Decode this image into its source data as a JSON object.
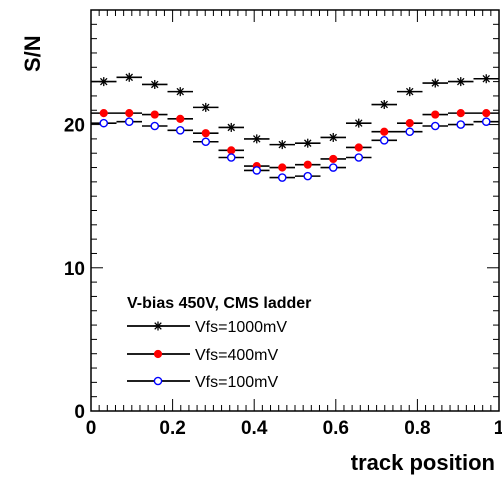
{
  "chart_data": {
    "type": "scatter",
    "xlabel": "track position",
    "ylabel": "S/N",
    "xlim": [
      0,
      1
    ],
    "ylim": [
      0,
      28
    ],
    "x_ticks": [
      "0",
      "0.2",
      "0.4",
      "0.6",
      "0.8",
      "1"
    ],
    "y_ticks": [
      "0",
      "10",
      "20"
    ],
    "grid": false,
    "legend_placement": "bottom-left",
    "legend_title": "V-bias 450V, CMS ladder",
    "bin_width": 0.0625,
    "x": [
      0.03125,
      0.09375,
      0.15625,
      0.21875,
      0.28125,
      0.34375,
      0.40625,
      0.46875,
      0.53125,
      0.59375,
      0.65625,
      0.71875,
      0.78125,
      0.84375,
      0.90625,
      0.96875
    ],
    "series": [
      {
        "name": "Vfs=1000mV",
        "marker": "star",
        "color": "#000000",
        "values": [
          23.0,
          23.3,
          22.8,
          22.3,
          21.2,
          19.8,
          19.0,
          18.6,
          18.7,
          19.1,
          20.1,
          21.4,
          22.3,
          22.9,
          23.0,
          23.2
        ]
      },
      {
        "name": "Vfs=400mV",
        "marker": "filled-circle",
        "color": "#ff0000",
        "values": [
          20.8,
          20.8,
          20.7,
          20.4,
          19.4,
          18.2,
          17.1,
          17.0,
          17.2,
          17.6,
          18.4,
          19.5,
          20.1,
          20.7,
          20.8,
          20.8
        ]
      },
      {
        "name": "Vfs=100mV",
        "marker": "open-circle",
        "color": "#0000ff",
        "values": [
          20.1,
          20.2,
          19.9,
          19.6,
          18.8,
          17.7,
          16.8,
          16.3,
          16.4,
          17.0,
          17.7,
          18.9,
          19.5,
          19.9,
          20.0,
          20.2
        ]
      }
    ]
  }
}
